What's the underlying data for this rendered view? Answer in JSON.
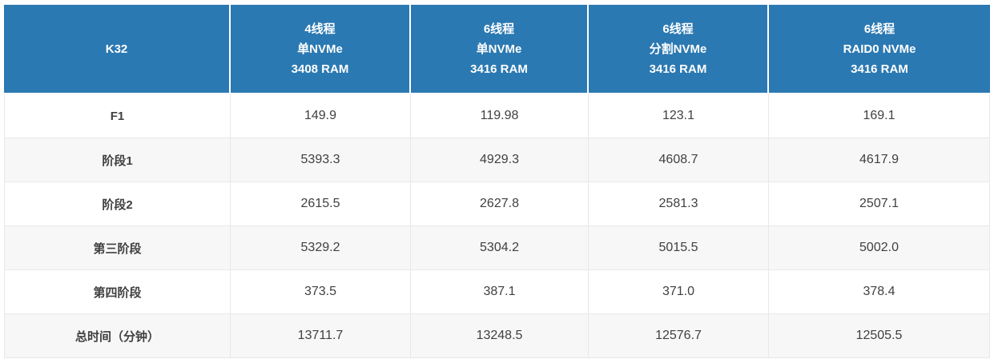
{
  "page": {
    "background": "#ffffff"
  },
  "table": {
    "corner_label": "K32",
    "column_headers": [
      {
        "lines": [
          "4线程",
          "单NVMe",
          "3408 RAM"
        ]
      },
      {
        "lines": [
          "6线程",
          "单NVMe",
          "3416 RAM"
        ]
      },
      {
        "lines": [
          "6线程",
          "分割NVMe",
          "3416 RAM"
        ]
      },
      {
        "lines": [
          "6线程",
          "RAID0 NVMe",
          "3416 RAM"
        ]
      }
    ],
    "rows": [
      {
        "label": "F1",
        "values": [
          "149.9",
          "119.98",
          "123.1",
          "169.1"
        ]
      },
      {
        "label": "阶段1",
        "values": [
          "5393.3",
          "4929.3",
          "4608.7",
          "4617.9"
        ]
      },
      {
        "label": "阶段2",
        "values": [
          "2615.5",
          "2627.8",
          "2581.3",
          "2507.1"
        ]
      },
      {
        "label": "第三阶段",
        "values": [
          "5329.2",
          "5304.2",
          "5015.5",
          "5002.0"
        ]
      },
      {
        "label": "第四阶段",
        "values": [
          "373.5",
          "387.1",
          "371.0",
          "378.4"
        ]
      },
      {
        "label": "总时间（分钟）",
        "values": [
          "13711.7",
          "13248.5",
          "12576.7",
          "12505.5"
        ]
      }
    ],
    "colors": {
      "header_bg": "#2b79b2",
      "header_text": "#ffffff",
      "row_bg": "#ffffff",
      "stripe_bg": "#f7f7f7",
      "border": "#e8e8e8",
      "body_text": "#404040"
    }
  },
  "chart_data": {
    "type": "table",
    "title": "K32",
    "categories": [
      "F1",
      "阶段1",
      "阶段2",
      "第三阶段",
      "第四阶段",
      "总时间（分钟）"
    ],
    "series": [
      {
        "name": "4线程 单NVMe 3408 RAM",
        "values": [
          149.9,
          5393.3,
          2615.5,
          5329.2,
          373.5,
          13711.7
        ]
      },
      {
        "name": "6线程 单NVMe 3416 RAM",
        "values": [
          119.98,
          4929.3,
          2627.8,
          5304.2,
          387.1,
          13248.5
        ]
      },
      {
        "name": "6线程 分割NVMe 3416 RAM",
        "values": [
          123.1,
          4608.7,
          2581.3,
          5015.5,
          371.0,
          12576.7
        ]
      },
      {
        "name": "6线程 RAID0 NVMe 3416 RAM",
        "values": [
          169.1,
          4617.9,
          2507.1,
          5002.0,
          378.4,
          12505.5
        ]
      }
    ],
    "legend_position": "top-header-row",
    "grid": true
  }
}
